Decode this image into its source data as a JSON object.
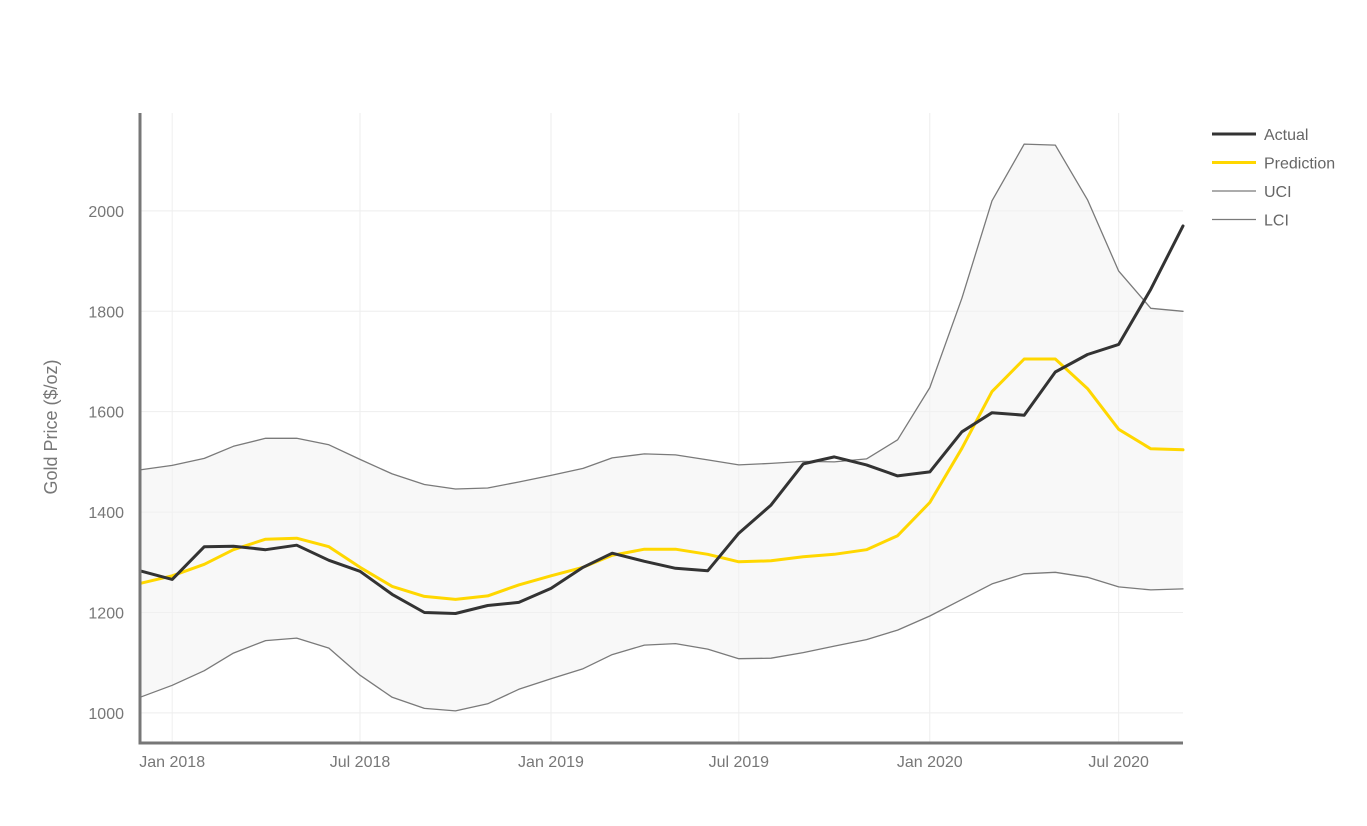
{
  "chart_data": {
    "type": "line",
    "ylabel": "Gold Price ($/oz)",
    "ylim": [
      940,
      2195
    ],
    "xlim": [
      "2017-12-01",
      "2020-09-01"
    ],
    "x_ticks": [
      {
        "date": "2018-01-01",
        "label": "Jan 2018"
      },
      {
        "date": "2018-07-01",
        "label": "Jul 2018"
      },
      {
        "date": "2019-01-01",
        "label": "Jan 2019"
      },
      {
        "date": "2019-07-01",
        "label": "Jul 2019"
      },
      {
        "date": "2020-01-01",
        "label": "Jan 2020"
      },
      {
        "date": "2020-07-01",
        "label": "Jul 2020"
      }
    ],
    "y_ticks": [
      1000,
      1200,
      1400,
      1600,
      1800,
      2000
    ],
    "grid": true,
    "legend_position": "top-right",
    "x": [
      "2017-12-01",
      "2018-01-01",
      "2018-02-01",
      "2018-03-01",
      "2018-04-01",
      "2018-05-01",
      "2018-06-01",
      "2018-07-01",
      "2018-08-01",
      "2018-09-01",
      "2018-10-01",
      "2018-11-01",
      "2018-12-01",
      "2019-01-01",
      "2019-02-01",
      "2019-03-01",
      "2019-04-01",
      "2019-05-01",
      "2019-06-01",
      "2019-07-01",
      "2019-08-01",
      "2019-09-01",
      "2019-10-01",
      "2019-11-01",
      "2019-12-01",
      "2020-01-01",
      "2020-02-01",
      "2020-03-01",
      "2020-04-01",
      "2020-05-01",
      "2020-06-01",
      "2020-07-01",
      "2020-08-01",
      "2020-09-01"
    ],
    "series": [
      {
        "name": "Actual",
        "color": "#333333",
        "values": [
          1283,
          1266,
          1331,
          1332,
          1325,
          1334,
          1304,
          1282,
          1236,
          1200,
          1198,
          1214,
          1220,
          1248,
          1290,
          1318,
          1302,
          1288,
          1283,
          1358,
          1414,
          1496,
          1510,
          1494,
          1472,
          1480,
          1560,
          1598,
          1593,
          1679,
          1714,
          1734,
          1844,
          1970
        ]
      },
      {
        "name": "Prediction",
        "color": "#FFD700",
        "values": [
          1258,
          1273,
          1296,
          1325,
          1346,
          1348,
          1331,
          1290,
          1252,
          1232,
          1226,
          1233,
          1255,
          1273,
          1290,
          1314,
          1326,
          1326,
          1316,
          1301,
          1303,
          1311,
          1316,
          1325,
          1353,
          1419,
          1527,
          1640,
          1705,
          1705,
          1646,
          1565,
          1526,
          1524
        ]
      },
      {
        "name": "UCI",
        "color": "#7a7a7a",
        "values": [
          1484,
          1493,
          1507,
          1531,
          1547,
          1547,
          1534,
          1505,
          1476,
          1455,
          1446,
          1448,
          1460,
          1473,
          1487,
          1508,
          1516,
          1514,
          1504,
          1494,
          1497,
          1501,
          1500,
          1506,
          1544,
          1648,
          1826,
          2020,
          2133,
          2131,
          2022,
          1880,
          1806,
          1800
        ]
      },
      {
        "name": "LCI",
        "color": "#7a7a7a",
        "values": [
          1031,
          1055,
          1084,
          1119,
          1144,
          1149,
          1129,
          1075,
          1031,
          1009,
          1004,
          1018,
          1047,
          1068,
          1088,
          1116,
          1135,
          1138,
          1127,
          1108,
          1109,
          1120,
          1133,
          1146,
          1165,
          1193,
          1226,
          1257,
          1277,
          1280,
          1270,
          1251,
          1245,
          1247
        ]
      }
    ]
  }
}
